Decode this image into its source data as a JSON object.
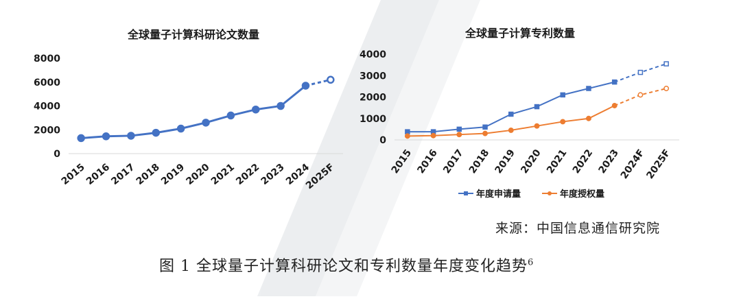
{
  "charts": [
    {
      "type": "line",
      "title": "全球量子计算科研论文数量",
      "categories": [
        "2015",
        "2016",
        "2017",
        "2018",
        "2019",
        "2020",
        "2021",
        "2022",
        "2023",
        "2024",
        "2025F"
      ],
      "ylim": [
        0,
        8000
      ],
      "yticks": [
        0,
        2000,
        4000,
        6000,
        8000
      ],
      "series": [
        {
          "values": [
            1300,
            1450,
            1500,
            1750,
            2100,
            2600,
            3200,
            3700,
            4000,
            5700,
            6200
          ],
          "color": "#4472C4",
          "marker": "circle",
          "forecast_points": [
            10
          ]
        }
      ],
      "legend": "none",
      "grid": false
    },
    {
      "type": "line",
      "title": "全球量子计算专利数量",
      "categories": [
        "2015",
        "2016",
        "2017",
        "2018",
        "2019",
        "2020",
        "2021",
        "2022",
        "2023",
        "2024F",
        "2025F"
      ],
      "ylim": [
        0,
        4000
      ],
      "yticks": [
        0,
        1000,
        2000,
        3000,
        4000
      ],
      "series": [
        {
          "name": "年度申请量",
          "values": [
            380,
            380,
            500,
            600,
            1200,
            1550,
            2100,
            2400,
            2700,
            3150,
            3550
          ],
          "color": "#4472C4",
          "marker": "square",
          "forecast_points": [
            9,
            10
          ]
        },
        {
          "name": "年度授权量",
          "values": [
            180,
            200,
            250,
            300,
            450,
            650,
            850,
            1000,
            1600,
            2100,
            2400
          ],
          "color": "#ED7D31",
          "marker": "circle",
          "forecast_points": [
            9,
            10
          ]
        }
      ],
      "legend": "bottom",
      "grid": false
    }
  ],
  "source": "来源：中国信息通信研究院",
  "caption": "图 1 全球量子计算科研论文和专利数量年度变化趋势",
  "caption_note": "6"
}
